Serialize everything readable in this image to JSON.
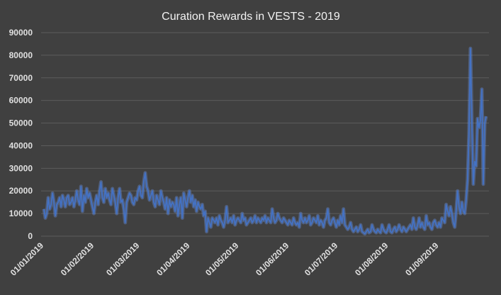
{
  "chart_data": {
    "type": "line",
    "title": "Curation Rewards in VESTS - 2019",
    "xlabel": "",
    "ylabel": "",
    "ylim": [
      0,
      90000
    ],
    "yticks": [
      0,
      10000,
      20000,
      30000,
      40000,
      50000,
      60000,
      70000,
      80000,
      90000
    ],
    "ytick_labels": [
      "0",
      "10000",
      "20000",
      "30000",
      "40000",
      "50000",
      "60000",
      "70000",
      "80000",
      "90000"
    ],
    "x_start": "01/01/2019",
    "x_end": "30/09/2019",
    "xtick_labels": [
      "01/01/2019",
      "01/02/2019",
      "01/03/2019",
      "01/04/2019",
      "01/05/2019",
      "01/06/2019",
      "01/07/2019",
      "01/08/2019",
      "01/09/2019"
    ],
    "grid": true,
    "legend": "none",
    "line_color": "#4472c4",
    "series": [
      {
        "values": [
          12000,
          8000,
          10000,
          17000,
          12000,
          14000,
          19000,
          15000,
          9000,
          14000,
          15000,
          17000,
          13000,
          18000,
          16000,
          13000,
          17000,
          18000,
          14000,
          15000,
          17000,
          13000,
          16000,
          20000,
          16000,
          14000,
          22000,
          11000,
          18000,
          15000,
          21000,
          17000,
          19000,
          16000,
          13000,
          10000,
          15000,
          18000,
          14000,
          20000,
          24000,
          17000,
          15000,
          21000,
          17000,
          19000,
          16000,
          14000,
          21000,
          18000,
          15000,
          10000,
          17000,
          21000,
          15000,
          16000,
          12000,
          6000,
          15000,
          17000,
          19000,
          18000,
          15000,
          14000,
          17000,
          16000,
          20000,
          22000,
          18000,
          17000,
          24000,
          28000,
          22000,
          20000,
          16000,
          18000,
          20000,
          15000,
          13000,
          18000,
          16000,
          14000,
          20000,
          17000,
          15000,
          12000,
          17000,
          10000,
          16000,
          13000,
          15000,
          14000,
          11000,
          17000,
          9000,
          14000,
          17000,
          8000,
          19000,
          16000,
          13000,
          17000,
          20000,
          15000,
          18000,
          13000,
          16000,
          11000,
          15000,
          13000,
          12000,
          14000,
          9000,
          11000,
          2000,
          8000,
          6000,
          4000,
          8000,
          7000,
          6000,
          8000,
          5000,
          9000,
          7000,
          6000,
          4000,
          7000,
          13000,
          6000,
          7000,
          8000,
          6000,
          9000,
          5000,
          7000,
          8000,
          7000,
          6000,
          10000,
          7000,
          8000,
          5000,
          6000,
          7000,
          8000,
          6000,
          7000,
          9000,
          6000,
          8000,
          7000,
          6000,
          8000,
          7000,
          9000,
          6000,
          8000,
          7000,
          6000,
          12000,
          8000,
          6000,
          7000,
          10000,
          8000,
          7000,
          6000,
          8000,
          7000,
          6000,
          5000,
          7000,
          6000,
          5000,
          8000,
          6000,
          5000,
          6000,
          4000,
          10000,
          7000,
          6000,
          8000,
          6000,
          7000,
          9000,
          5000,
          6000,
          8000,
          7000,
          6000,
          9000,
          5000,
          7000,
          6000,
          4000,
          7000,
          8000,
          12000,
          6000,
          5000,
          7000,
          8000,
          6000,
          4000,
          7000,
          5000,
          9000,
          6000,
          12000,
          5000,
          4000,
          3000,
          4000,
          6000,
          3000,
          2000,
          3000,
          4000,
          2000,
          3000,
          5000,
          2000,
          1500,
          1000,
          2000,
          3000,
          1500,
          2000,
          5000,
          3000,
          2000,
          1500,
          3000,
          2000,
          1500,
          5000,
          3000,
          2000,
          1500,
          3000,
          5000,
          2000,
          1500,
          3000,
          4000,
          2000,
          3000,
          5000,
          3000,
          2000,
          4000,
          3000,
          2000,
          3000,
          4000,
          5000,
          3000,
          8000,
          4000,
          3000,
          5000,
          8000,
          4000,
          6000,
          4000,
          3000,
          9000,
          5000,
          6000,
          4000,
          3000,
          6000,
          7000,
          5000,
          4000,
          6000,
          4000,
          8000,
          7000,
          6000,
          14000,
          11000,
          9000,
          13000,
          10000,
          6000,
          4000,
          11000,
          20000,
          13000,
          10000,
          15000,
          11000,
          10000,
          16000,
          25000,
          45000,
          83000,
          50000,
          23000,
          33000,
          31000,
          52000,
          48000,
          51000,
          65000,
          23000,
          50000,
          53000
        ]
      }
    ]
  }
}
